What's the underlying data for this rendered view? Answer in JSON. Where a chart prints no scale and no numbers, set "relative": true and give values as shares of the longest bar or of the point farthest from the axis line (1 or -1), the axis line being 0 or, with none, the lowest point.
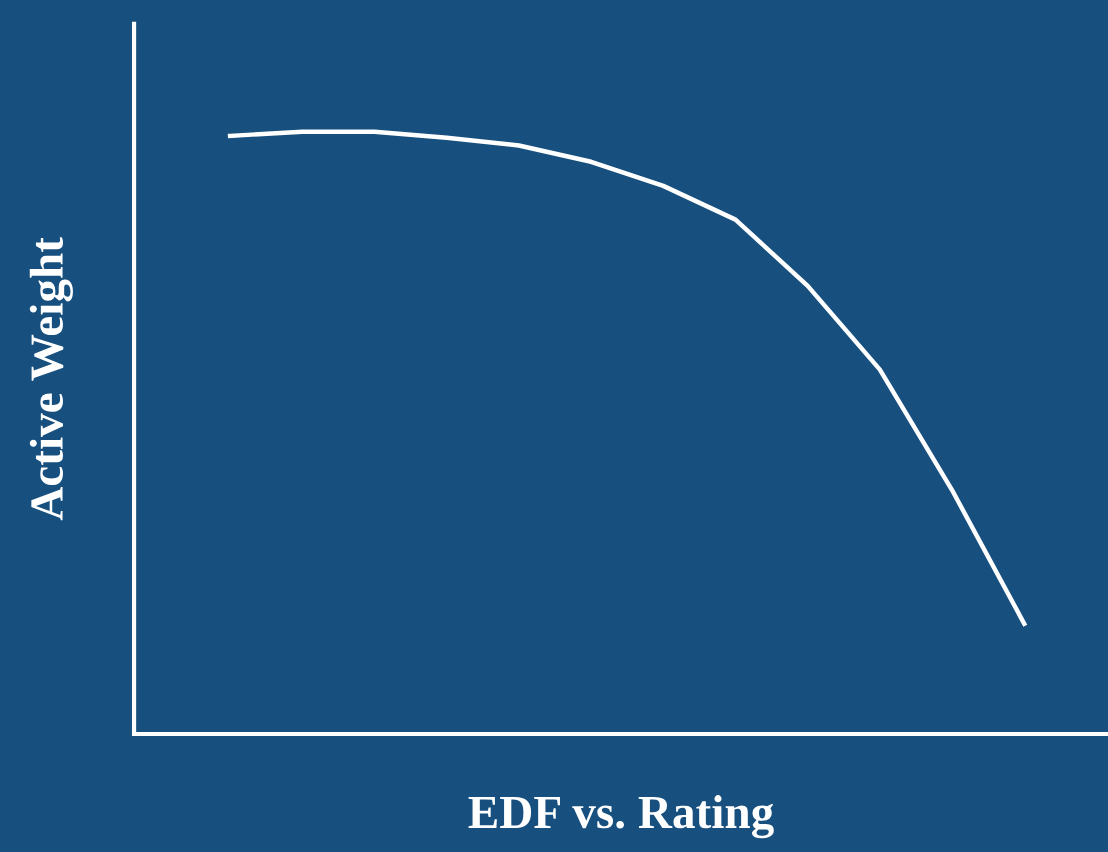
{
  "chart_data": {
    "type": "line",
    "relative": true,
    "xlabel": "EDF vs. Rating",
    "ylabel": "Active Weight",
    "categories": [
      null,
      null,
      null,
      null,
      null,
      null,
      null,
      null,
      null,
      null,
      null,
      null
    ],
    "series": [
      {
        "color": "#ffffff",
        "values": [
          0.993,
          1.0,
          1.0,
          0.99,
          0.977,
          0.95,
          0.91,
          0.854,
          0.744,
          0.605,
          0.405,
          0.183
        ]
      }
    ],
    "grid": false,
    "legend": false,
    "tick_labels": false,
    "marker": "none",
    "line_style": "solid"
  }
}
